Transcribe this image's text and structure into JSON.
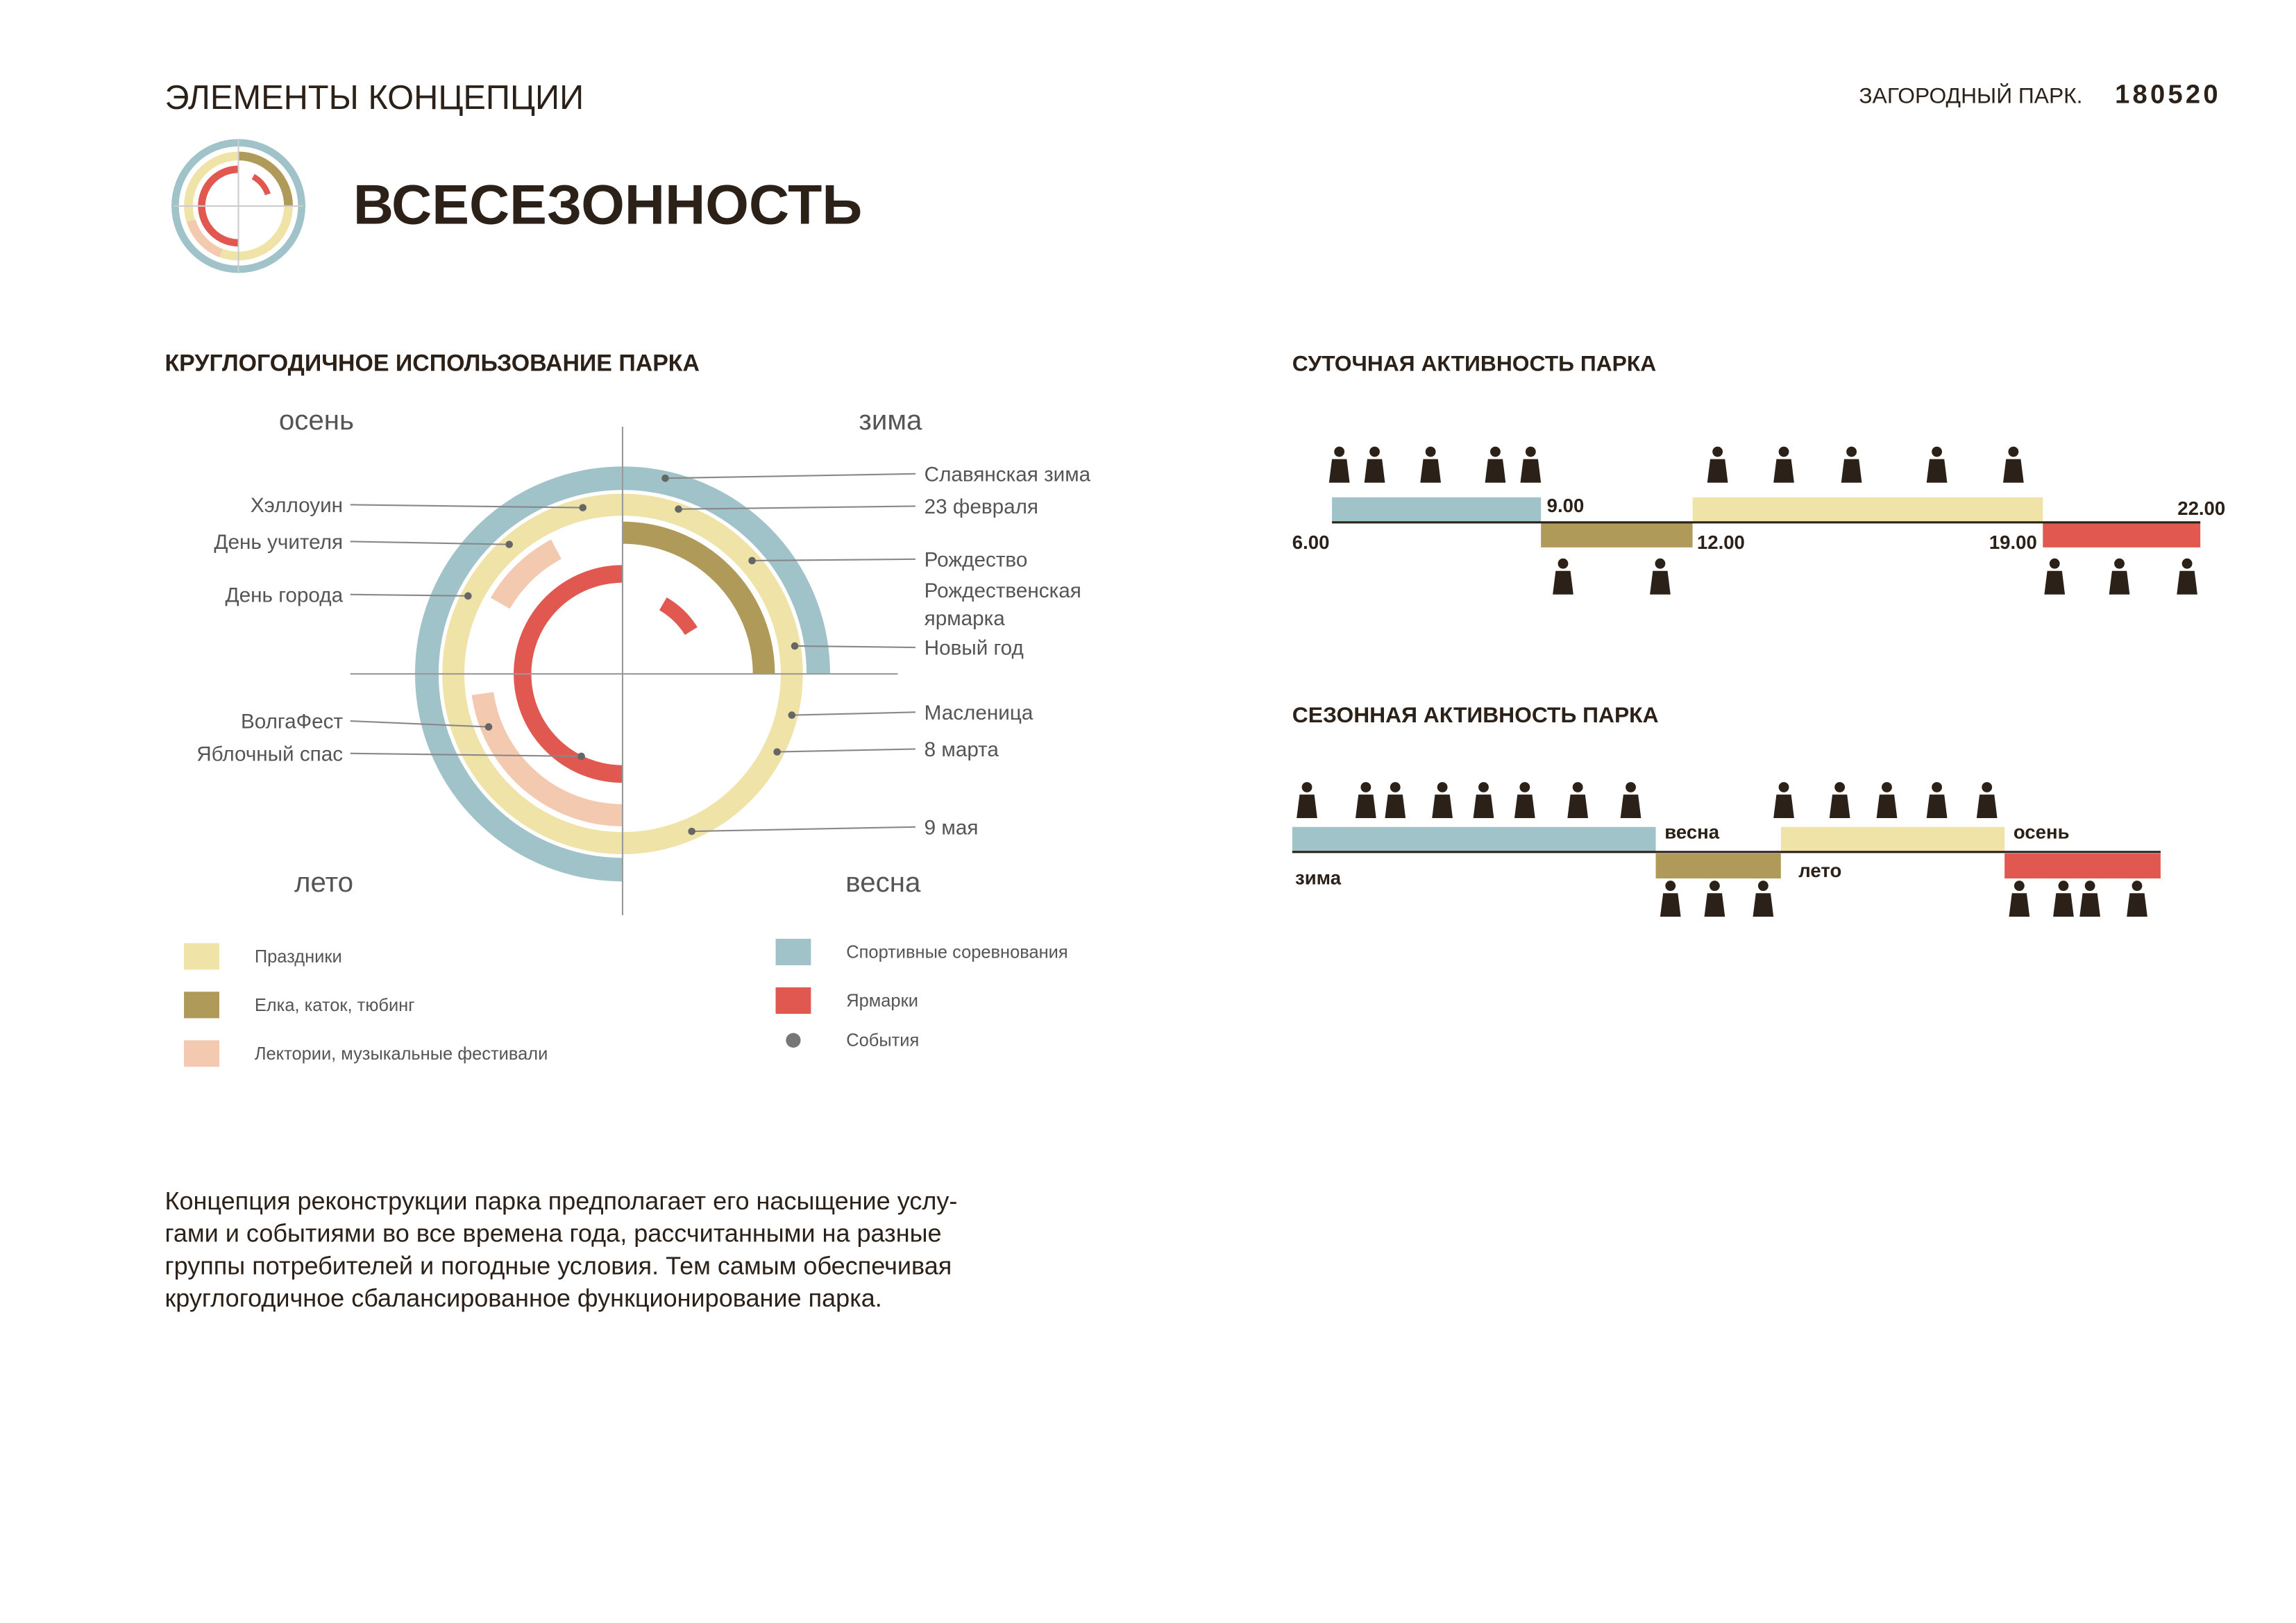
{
  "header": {
    "section": "ЭЛЕМЕНТЫ КОНЦЕПЦИИ",
    "project": "ЗАГОРОДНЫЙ ПАРК.",
    "code": "180520",
    "title": "ВСЕСЕЗОННОСТЬ"
  },
  "year_round": {
    "title": "КРУГЛОГОДИЧНОЕ ИСПОЛЬЗОВАНИЕ ПАРКА",
    "seasons": [
      "осень",
      "зима",
      "лето",
      "весна"
    ],
    "events_left": [
      "Хэллоуин",
      "День учителя",
      "День города",
      "ВолгаФест",
      "Яблочный спас"
    ],
    "events_right": [
      "Славянская зима",
      "23 февраля",
      "Рождество",
      [
        "Рождественская",
        "ярмарка"
      ],
      "Новый год",
      "Масленица",
      "8 марта",
      "9 мая"
    ],
    "legend": [
      "Праздники",
      "Елка, каток, тюбинг",
      "Лектории, музыкальные фестивали",
      "Спортивные соревнования",
      "Ярмарки",
      "События"
    ]
  },
  "daily": {
    "title": "СУТОЧНАЯ АКТИВНОСТЬ ПАРКА",
    "times": [
      "6.00",
      "9.00",
      "12.00",
      "19.00",
      "22.00"
    ]
  },
  "seasonal": {
    "title": "СЕЗОННАЯ АКТИВНОСТЬ ПАРКА",
    "seasons": [
      "зима",
      "весна",
      "лето",
      "осень"
    ]
  },
  "description": [
    "Концепция реконструкции парка предполагает его насыщение услу-",
    "гами и событиями во все времена года, рассчитанными на разные",
    "группы потребителей и погодные условия. Тем самым обеспечивая",
    "круглогодичное сбалансированное функционирование парка."
  ]
}
